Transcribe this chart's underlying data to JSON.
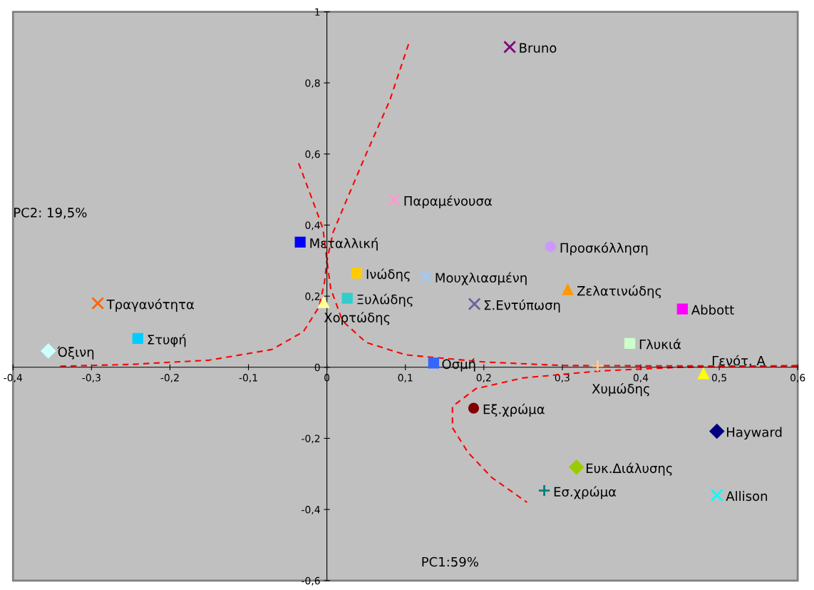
{
  "chart_data": {
    "type": "scatter",
    "xlabel": "PC1:59%",
    "ylabel": "PC2: 19,5%",
    "xlim": [
      -0.4,
      0.6
    ],
    "ylim": [
      -0.6,
      1
    ],
    "xticks": [
      {
        "value": -0.4,
        "label": "-0,4"
      },
      {
        "value": -0.3,
        "label": "-0,3"
      },
      {
        "value": -0.2,
        "label": "-0,2"
      },
      {
        "value": -0.1,
        "label": "-0,1"
      },
      0,
      {
        "value": 0.1,
        "label": "0,1"
      },
      {
        "value": 0.2,
        "label": "0,2"
      },
      {
        "value": 0.3,
        "label": "0,3"
      },
      {
        "value": 0.4,
        "label": "0,4"
      },
      {
        "value": 0.5,
        "label": "0,5"
      },
      {
        "value": 0.6,
        "label": "0,6"
      }
    ],
    "yticks": [
      {
        "value": -0.6,
        "label": "-0,6"
      },
      {
        "value": -0.4,
        "label": "-0,4"
      },
      {
        "value": -0.2,
        "label": "-0,2"
      },
      0,
      {
        "value": 0.2,
        "label": "0,2"
      },
      {
        "value": 0.4,
        "label": "0,4"
      },
      {
        "value": 0.6,
        "label": "0,6"
      },
      {
        "value": 0.8,
        "label": "0,8"
      },
      1
    ],
    "grid": false,
    "legend": false,
    "series": [
      {
        "name": "Bruno",
        "color": "#800080",
        "marker": "cross",
        "x": [
          0.233
        ],
        "values": [
          0.901
        ]
      },
      {
        "name": "Παραμένουσα",
        "color": "#ff99cc",
        "marker": "cross",
        "x": [
          0.086
        ],
        "values": [
          0.471
        ]
      },
      {
        "name": "Μεταλλική",
        "color": "#0000ff",
        "marker": "square",
        "x": [
          -0.034
        ],
        "values": [
          0.352
        ]
      },
      {
        "name": "Προσκόλληση",
        "color": "#cc99ff",
        "marker": "circle",
        "x": [
          0.285
        ],
        "values": [
          0.339
        ]
      },
      {
        "name": "Ινώδης",
        "color": "#ffcc00",
        "marker": "square",
        "x": [
          0.038
        ],
        "values": [
          0.265
        ]
      },
      {
        "name": "Μουχλιασμένη",
        "color": "#99ccff",
        "marker": "cross",
        "x": [
          0.126
        ],
        "values": [
          0.255
        ]
      },
      {
        "name": "Ζελατινώδης",
        "color": "#ff9900",
        "marker": "triangle",
        "x": [
          0.307
        ],
        "values": [
          0.218
        ]
      },
      {
        "name": "Τραγανότητα",
        "color": "#ff6600",
        "marker": "cross",
        "x": [
          -0.292
        ],
        "values": [
          0.18
        ]
      },
      {
        "name": "Ξυλώδης",
        "color": "#33cccc",
        "marker": "square",
        "x": [
          0.026
        ],
        "values": [
          0.194
        ]
      },
      {
        "name": "Σ.Εντύπωση",
        "color": "#666699",
        "marker": "cross",
        "x": [
          0.188
        ],
        "values": [
          0.178
        ]
      },
      {
        "name": "Abbott",
        "color": "#ff00ff",
        "marker": "square",
        "x": [
          0.453
        ],
        "values": [
          0.164
        ]
      },
      {
        "name": "Χορτώδης",
        "color": "#ffff99",
        "marker": "triangle",
        "x": [
          -0.004
        ],
        "values": [
          0.182
        ]
      },
      {
        "name": "Στυφή",
        "color": "#00ccff",
        "marker": "square",
        "x": [
          -0.241
        ],
        "values": [
          0.081
        ]
      },
      {
        "name": "Γλυκιά",
        "color": "#ccffcc",
        "marker": "square",
        "x": [
          0.386
        ],
        "values": [
          0.067
        ]
      },
      {
        "name": "Όξινη",
        "color": "#ccffff",
        "marker": "diamond",
        "x": [
          -0.355
        ],
        "values": [
          0.046
        ]
      },
      {
        "name": "Οσμή",
        "color": "#3366ff",
        "marker": "square",
        "x": [
          0.136
        ],
        "values": [
          0.012
        ]
      },
      {
        "name": "Χυμώδης",
        "color": "#ffcc99",
        "marker": "plus",
        "x": [
          0.345
        ],
        "values": [
          0.004
        ]
      },
      {
        "name": "Γενότ. Α",
        "color": "#ffff00",
        "marker": "triangle",
        "x": [
          0.48
        ],
        "values": [
          -0.018
        ]
      },
      {
        "name": "Εξ.χρώμα",
        "color": "#800000",
        "marker": "circle",
        "x": [
          0.187
        ],
        "values": [
          -0.115
        ]
      },
      {
        "name": "Hayward",
        "color": "#000080",
        "marker": "diamond",
        "x": [
          0.497
        ],
        "values": [
          -0.18
        ]
      },
      {
        "name": "Ευκ.Διάλυσης",
        "color": "#99cc00",
        "marker": "diamond",
        "x": [
          0.318
        ],
        "values": [
          -0.281
        ]
      },
      {
        "name": "Εσ.χρώμα",
        "color": "#008080",
        "marker": "plus",
        "x": [
          0.277
        ],
        "values": [
          -0.347
        ]
      },
      {
        "name": "Allison",
        "color": "#00ffff",
        "marker": "cross",
        "x": [
          0.497
        ],
        "values": [
          -0.36
        ]
      },
      {
        "type": "line",
        "color": "#ff0000",
        "line_style": "dashed",
        "marker": "none",
        "x": [
          0.104,
          0.08,
          0.05,
          0.025,
          0.008,
          0.0,
          -0.003,
          -0.01,
          -0.03,
          -0.07,
          -0.15,
          -0.25,
          -0.34
        ],
        "values": [
          0.909,
          0.75,
          0.6,
          0.47,
          0.38,
          0.3,
          0.24,
          0.17,
          0.1,
          0.05,
          0.02,
          0.008,
          0.003
        ]
      },
      {
        "type": "line",
        "color": "#ff0000",
        "line_style": "dashed",
        "marker": "none",
        "x": [
          -0.036,
          -0.02,
          -0.005,
          0.0,
          0.005,
          0.02,
          0.05,
          0.1,
          0.2,
          0.3,
          0.45,
          0.6
        ],
        "values": [
          0.574,
          0.48,
          0.39,
          0.3,
          0.22,
          0.13,
          0.07,
          0.035,
          0.015,
          0.005,
          0.004,
          0.003
        ]
      },
      {
        "type": "line",
        "color": "#ff0000",
        "line_style": "dashed",
        "marker": "none",
        "x": [
          0.6,
          0.45,
          0.35,
          0.25,
          0.19,
          0.16,
          0.16,
          0.18,
          0.21,
          0.255
        ],
        "values": [
          0.005,
          0.0,
          -0.01,
          -0.03,
          -0.06,
          -0.11,
          -0.17,
          -0.24,
          -0.31,
          -0.38
        ]
      }
    ]
  }
}
